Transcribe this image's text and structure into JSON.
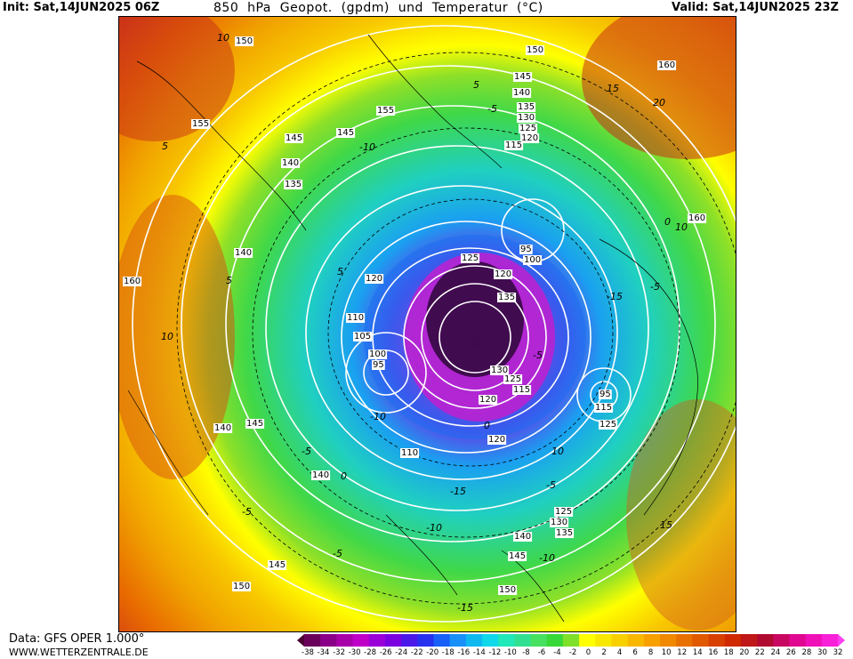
{
  "header": {
    "init": "Init: Sat,14JUN2025 06Z",
    "title": "850  hPa  Geopot.  (gpdm)  und  Temperatur  (°C)",
    "valid": "Valid: Sat,14JUN2025 23Z"
  },
  "footer": {
    "data_source": "Data: GFS OPER 1.000°",
    "website": "WWW.WETTERZENTRALE.DE"
  },
  "legend": {
    "labels": [
      "-38",
      "-34",
      "-32",
      "-30",
      "-28",
      "-26",
      "-24",
      "-22",
      "-20",
      "-18",
      "-16",
      "-14",
      "-12",
      "-10",
      "-8",
      "-6",
      "-4",
      "-2",
      "0",
      "2",
      "4",
      "6",
      "8",
      "10",
      "12",
      "14",
      "16",
      "18",
      "20",
      "22",
      "24",
      "26",
      "28",
      "30",
      "32"
    ],
    "colors": [
      "#4b0033",
      "#6a005a",
      "#8a0088",
      "#a800a8",
      "#c000c8",
      "#9a00d8",
      "#7a00e0",
      "#4a18e8",
      "#2830f0",
      "#1860f8",
      "#1890f8",
      "#10b8f0",
      "#10d8e8",
      "#20e8b8",
      "#30e090",
      "#48e060",
      "#38d838",
      "#7ee028",
      "#ffff00",
      "#f8e800",
      "#f8d000",
      "#f8b800",
      "#f8a000",
      "#f08800",
      "#e87000",
      "#e05800",
      "#d84000",
      "#d02800",
      "#c01818",
      "#b00a30",
      "#c80860",
      "#e00890",
      "#f010b8",
      "#f820d8",
      "#fc40f0"
    ]
  },
  "map": {
    "contour_labels": [
      {
        "text": "150",
        "kind": "geopotential"
      },
      {
        "text": "150",
        "kind": "geopotential"
      },
      {
        "text": "145",
        "kind": "geopotential"
      },
      {
        "text": "140",
        "kind": "geopotential"
      },
      {
        "text": "135",
        "kind": "geopotential"
      },
      {
        "text": "130",
        "kind": "geopotential"
      },
      {
        "text": "125",
        "kind": "geopotential"
      },
      {
        "text": "120",
        "kind": "geopotential"
      },
      {
        "text": "115",
        "kind": "geopotential"
      },
      {
        "text": "160",
        "kind": "geopotential"
      },
      {
        "text": "155",
        "kind": "geopotential"
      },
      {
        "text": "145",
        "kind": "geopotential"
      },
      {
        "text": "155",
        "kind": "geopotential"
      },
      {
        "text": "145",
        "kind": "geopotential"
      },
      {
        "text": "140",
        "kind": "geopotential"
      },
      {
        "text": "135",
        "kind": "geopotential"
      },
      {
        "text": "140",
        "kind": "geopotential"
      },
      {
        "text": "160",
        "kind": "geopotential"
      },
      {
        "text": "160",
        "kind": "geopotential"
      },
      {
        "text": "120",
        "kind": "geopotential"
      },
      {
        "text": "110",
        "kind": "geopotential"
      },
      {
        "text": "105",
        "kind": "geopotential"
      },
      {
        "text": "100",
        "kind": "geopotential"
      },
      {
        "text": "95",
        "kind": "geopotential"
      },
      {
        "text": "125",
        "kind": "geopotential"
      },
      {
        "text": "120",
        "kind": "geopotential"
      },
      {
        "text": "135",
        "kind": "geopotential"
      },
      {
        "text": "95",
        "kind": "geopotential"
      },
      {
        "text": "100",
        "kind": "geopotential"
      },
      {
        "text": "130",
        "kind": "geopotential"
      },
      {
        "text": "125",
        "kind": "geopotential"
      },
      {
        "text": "115",
        "kind": "geopotential"
      },
      {
        "text": "120",
        "kind": "geopotential"
      },
      {
        "text": "120",
        "kind": "geopotential"
      },
      {
        "text": "110",
        "kind": "geopotential"
      },
      {
        "text": "95",
        "kind": "geopotential"
      },
      {
        "text": "115",
        "kind": "geopotential"
      },
      {
        "text": "125",
        "kind": "geopotential"
      },
      {
        "text": "145",
        "kind": "geopotential"
      },
      {
        "text": "140",
        "kind": "geopotential"
      },
      {
        "text": "140",
        "kind": "geopotential"
      },
      {
        "text": "125",
        "kind": "geopotential"
      },
      {
        "text": "130",
        "kind": "geopotential"
      },
      {
        "text": "135",
        "kind": "geopotential"
      },
      {
        "text": "140",
        "kind": "geopotential"
      },
      {
        "text": "145",
        "kind": "geopotential"
      },
      {
        "text": "145",
        "kind": "geopotential"
      },
      {
        "text": "150",
        "kind": "geopotential"
      },
      {
        "text": "150",
        "kind": "geopotential"
      },
      {
        "text": "5",
        "kind": "temperature"
      },
      {
        "text": "-5",
        "kind": "temperature"
      },
      {
        "text": "-10",
        "kind": "temperature"
      },
      {
        "text": "15",
        "kind": "temperature"
      },
      {
        "text": "10",
        "kind": "temperature"
      },
      {
        "text": "5",
        "kind": "temperature"
      },
      {
        "text": "0",
        "kind": "temperature"
      },
      {
        "text": "-5",
        "kind": "temperature"
      },
      {
        "text": "-5",
        "kind": "temperature"
      },
      {
        "text": "0",
        "kind": "temperature"
      },
      {
        "text": "10",
        "kind": "temperature"
      },
      {
        "text": "-15",
        "kind": "temperature"
      },
      {
        "text": "-10",
        "kind": "temperature"
      },
      {
        "text": "-5",
        "kind": "temperature"
      },
      {
        "text": "0",
        "kind": "temperature"
      },
      {
        "text": "-15",
        "kind": "temperature"
      },
      {
        "text": "-10",
        "kind": "temperature"
      },
      {
        "text": "-5",
        "kind": "temperature"
      },
      {
        "text": "-5",
        "kind": "temperature"
      },
      {
        "text": "-10",
        "kind": "temperature"
      },
      {
        "text": "-15",
        "kind": "temperature"
      },
      {
        "text": "-5",
        "kind": "temperature"
      },
      {
        "text": "5",
        "kind": "temperature"
      },
      {
        "text": "10",
        "kind": "temperature"
      },
      {
        "text": "15",
        "kind": "temperature"
      },
      {
        "text": "20",
        "kind": "temperature"
      },
      {
        "text": "10",
        "kind": "temperature"
      },
      {
        "text": "5",
        "kind": "temperature"
      }
    ]
  }
}
